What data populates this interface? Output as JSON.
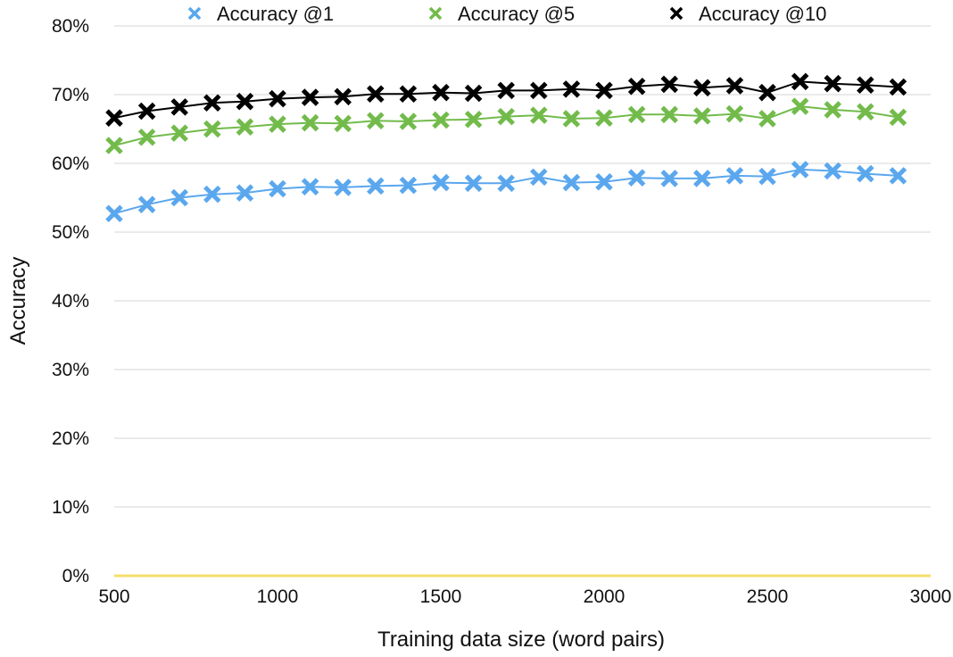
{
  "chart_data": {
    "type": "line",
    "xlabel": "Training data size (word pairs)",
    "ylabel": "Accuracy",
    "xlim": [
      500,
      3000
    ],
    "ylim": [
      0,
      80
    ],
    "x_ticks": [
      "500",
      "1000",
      "1500",
      "2000",
      "2500",
      "3000"
    ],
    "y_ticks": [
      "0%",
      "10%",
      "20%",
      "30%",
      "40%",
      "50%",
      "60%",
      "70%",
      "80%"
    ],
    "grid": "horizontal",
    "legend_position": "top",
    "baseline_color": "#F5DF6D",
    "x": [
      500,
      600,
      700,
      800,
      900,
      1000,
      1100,
      1200,
      1300,
      1400,
      1500,
      1600,
      1700,
      1800,
      1900,
      2000,
      2100,
      2200,
      2300,
      2400,
      2500,
      2600,
      2700,
      2800,
      2900
    ],
    "series": [
      {
        "name": "Accuracy @1",
        "color": "#5AA7EE",
        "marker": "x",
        "values": [
          52.7,
          54.0,
          55.0,
          55.5,
          55.7,
          56.3,
          56.6,
          56.5,
          56.7,
          56.8,
          57.2,
          57.1,
          57.1,
          58.0,
          57.2,
          57.3,
          57.9,
          57.8,
          57.8,
          58.2,
          58.1,
          59.1,
          58.9,
          58.5,
          58.2
        ]
      },
      {
        "name": "Accuracy @5",
        "color": "#72BB4B",
        "marker": "x",
        "values": [
          62.6,
          63.8,
          64.4,
          65.0,
          65.3,
          65.7,
          65.9,
          65.8,
          66.2,
          66.1,
          66.3,
          66.4,
          66.8,
          67.0,
          66.5,
          66.6,
          67.1,
          67.1,
          66.9,
          67.2,
          66.5,
          68.3,
          67.8,
          67.5,
          66.7
        ]
      },
      {
        "name": "Accuracy @10",
        "color": "#000000",
        "marker": "x",
        "values": [
          66.6,
          67.6,
          68.2,
          68.8,
          69.0,
          69.4,
          69.6,
          69.7,
          70.1,
          70.1,
          70.3,
          70.2,
          70.6,
          70.6,
          70.8,
          70.6,
          71.2,
          71.5,
          71.0,
          71.3,
          70.3,
          71.9,
          71.6,
          71.4,
          71.1
        ]
      }
    ]
  }
}
